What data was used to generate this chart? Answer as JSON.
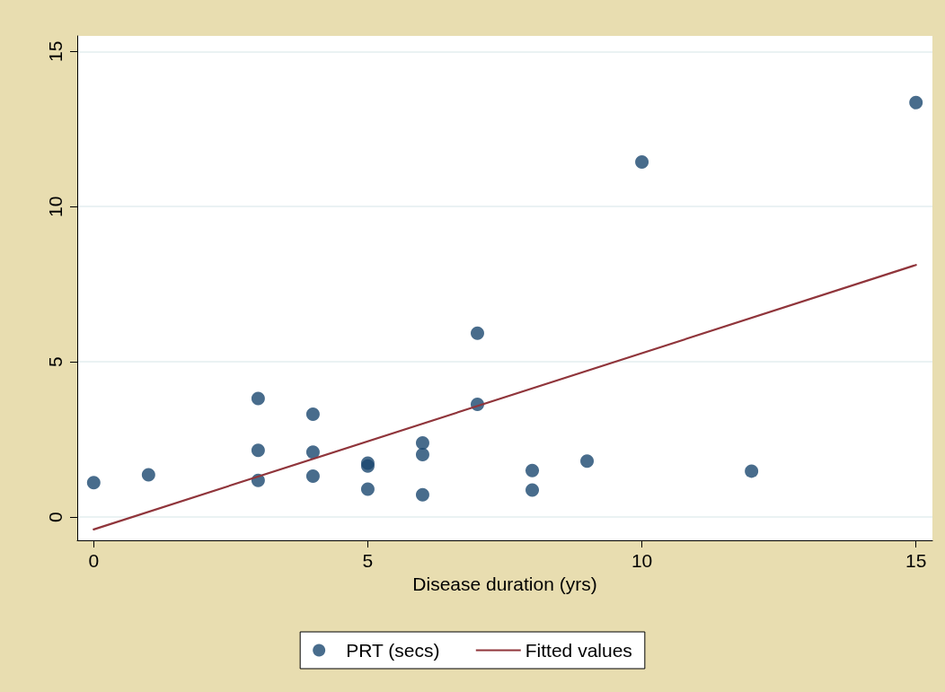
{
  "chart_data": {
    "type": "scatter",
    "xlabel": "Disease duration (yrs)",
    "xlim": [
      -0.3,
      15.3
    ],
    "ylim": [
      -0.75,
      15.5
    ],
    "xticks": [
      0,
      5,
      10,
      15
    ],
    "yticks": [
      0,
      5,
      10,
      15
    ],
    "grid": "y",
    "legend": "bottom",
    "series": [
      {
        "name": "PRT (secs)",
        "type": "scatter",
        "color": "#1a476f",
        "marker": "circle",
        "x": [
          0,
          1,
          3,
          3,
          3,
          4,
          4,
          4,
          5,
          5,
          5,
          6,
          6,
          6,
          7,
          7,
          8,
          8,
          9,
          10,
          12,
          15
        ],
        "values": [
          1.11,
          1.36,
          3.82,
          2.15,
          1.18,
          3.31,
          2.09,
          1.32,
          1.74,
          1.64,
          0.9,
          2.39,
          2.01,
          0.72,
          5.92,
          3.63,
          1.5,
          0.87,
          1.8,
          11.44,
          1.48,
          13.35
        ]
      },
      {
        "name": "Fitted values",
        "type": "line",
        "color": "#90353b",
        "marker": "none",
        "line_style": "solid",
        "x": [
          0,
          15
        ],
        "values": [
          -0.4,
          8.12
        ]
      }
    ]
  }
}
